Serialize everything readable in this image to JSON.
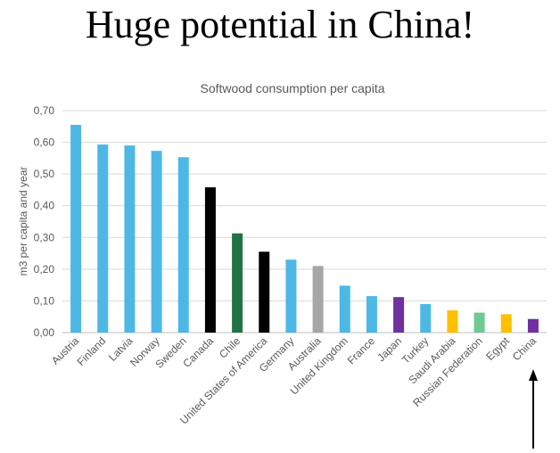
{
  "slide": {
    "title": "Huge potential in China!"
  },
  "chart_data": {
    "type": "bar",
    "title": "Softwood consumption per capita",
    "xlabel": "",
    "ylabel": "m3 per capita and year",
    "ylim": [
      0,
      0.7
    ],
    "yticks": [
      "0,00",
      "0,10",
      "0,20",
      "0,30",
      "0,40",
      "0,50",
      "0,60",
      "0,70"
    ],
    "grid": true,
    "legend": "none",
    "categories": [
      "Austria",
      "Finland",
      "Latvia",
      "Norway",
      "Sweden",
      "Canada",
      "Chile",
      "United States of America",
      "Germany",
      "Australia",
      "United Kingdom",
      "France",
      "Japan",
      "Turkey",
      "Saudi Arabia",
      "Russian Federation",
      "Egypt",
      "China"
    ],
    "values": [
      0.655,
      0.593,
      0.59,
      0.573,
      0.553,
      0.458,
      0.313,
      0.255,
      0.23,
      0.21,
      0.148,
      0.115,
      0.112,
      0.09,
      0.07,
      0.063,
      0.058,
      0.043
    ],
    "colors": [
      "#4db8e6",
      "#4db8e6",
      "#4db8e6",
      "#4db8e6",
      "#4db8e6",
      "#000000",
      "#217346",
      "#000000",
      "#4db8e6",
      "#a6a6a6",
      "#4db8e6",
      "#4db8e6",
      "#7030a0",
      "#4db8e6",
      "#ffc000",
      "#70c995",
      "#ffc000",
      "#7030a0"
    ],
    "annotation": "arrow-pointing-to-China"
  }
}
